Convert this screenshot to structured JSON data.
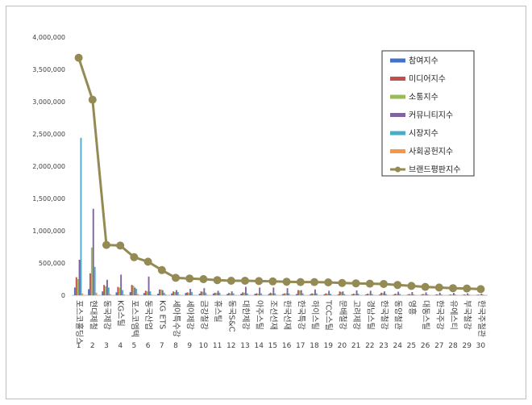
{
  "chart_data": {
    "type": "bar",
    "ylim": [
      0,
      4000000
    ],
    "y_ticks": [
      "0",
      "500,000",
      "1,000,000",
      "1,500,000",
      "2,000,000",
      "2,500,000",
      "3,000,000",
      "3,500,000",
      "4,000,000"
    ],
    "categories": [
      "포스코홀딩스",
      "현대제철",
      "동국제강",
      "KG스틸",
      "포스코엠텍",
      "동국산업",
      "KG ETS",
      "세아특수강",
      "세아제강",
      "금강철강",
      "휴스틸",
      "동국S&C",
      "대한제강",
      "아주스틸",
      "조선선재",
      "한국선재",
      "한국특강",
      "하이스틸",
      "TCC스틸",
      "문배철강",
      "고려제강",
      "경남스틸",
      "한국철강",
      "동양철관",
      "영흥",
      "대동스틸",
      "한국주강",
      "유에스티",
      "부국철강",
      "한국주철관"
    ],
    "ranks": [
      "1",
      "2",
      "3",
      "4",
      "5",
      "6",
      "7",
      "8",
      "9",
      "10",
      "11",
      "12",
      "13",
      "14",
      "15",
      "16",
      "17",
      "18",
      "19",
      "20",
      "21",
      "22",
      "23",
      "24",
      "25",
      "26",
      "27",
      "28",
      "29",
      "30"
    ],
    "series": [
      {
        "name": "참여지수",
        "color": "#4472c4",
        "values": [
          120000,
          95000,
          60000,
          45000,
          50000,
          35000,
          25000,
          30000,
          35000,
          25000,
          28000,
          20000,
          25000,
          22000,
          20000,
          18000,
          20000,
          18000,
          15000,
          14000,
          15000,
          12000,
          14000,
          10000,
          8000,
          9000,
          7000,
          7000,
          6000,
          6000
        ]
      },
      {
        "name": "미디어지수",
        "color": "#c0504d",
        "values": [
          280000,
          340000,
          160000,
          130000,
          160000,
          70000,
          90000,
          60000,
          45000,
          60000,
          40000,
          35000,
          45000,
          30000,
          40000,
          30000,
          80000,
          30000,
          30000,
          60000,
          25000,
          25000,
          40000,
          25000,
          20000,
          20000,
          15000,
          12000,
          12000,
          10000
        ]
      },
      {
        "name": "소통지수",
        "color": "#9bbb59",
        "values": [
          250000,
          740000,
          140000,
          120000,
          150000,
          60000,
          90000,
          50000,
          40000,
          55000,
          35000,
          30000,
          40000,
          25000,
          30000,
          30000,
          75000,
          25000,
          25000,
          50000,
          20000,
          20000,
          35000,
          20000,
          15000,
          15000,
          12000,
          10000,
          10000,
          8000
        ]
      },
      {
        "name": "커뮤니티지수",
        "color": "#8064a2",
        "values": [
          550000,
          1340000,
          240000,
          320000,
          120000,
          290000,
          80000,
          80000,
          100000,
          110000,
          70000,
          60000,
          130000,
          120000,
          120000,
          110000,
          80000,
          90000,
          70000,
          60000,
          75000,
          70000,
          60000,
          55000,
          50000,
          45000,
          40000,
          35000,
          30000,
          25000
        ]
      },
      {
        "name": "시장지수",
        "color": "#4bacc6",
        "values": [
          2440000,
          440000,
          120000,
          80000,
          100000,
          60000,
          40000,
          50000,
          50000,
          40000,
          40000,
          30000,
          30000,
          30000,
          30000,
          30000,
          30000,
          30000,
          25000,
          20000,
          25000,
          20000,
          20000,
          20000,
          15000,
          15000,
          12000,
          12000,
          10000,
          10000
        ]
      },
      {
        "name": "사회공헌지수",
        "color": "#f79646",
        "values": [
          30000,
          40000,
          20000,
          15000,
          20000,
          10000,
          15000,
          10000,
          8000,
          8000,
          6000,
          6000,
          6000,
          5000,
          5000,
          5000,
          5000,
          5000,
          5000,
          5000,
          4000,
          4000,
          4000,
          4000,
          3000,
          3000,
          3000,
          3000,
          3000,
          3000
        ]
      },
      {
        "name": "브랜드평판지수",
        "color": "#948a54",
        "type": "line",
        "values": [
          3680000,
          3030000,
          780000,
          770000,
          590000,
          520000,
          390000,
          270000,
          260000,
          250000,
          235000,
          225000,
          225000,
          220000,
          215000,
          210000,
          205000,
          205000,
          200000,
          190000,
          185000,
          180000,
          175000,
          160000,
          145000,
          130000,
          120000,
          110000,
          105000,
          95000
        ]
      }
    ]
  }
}
